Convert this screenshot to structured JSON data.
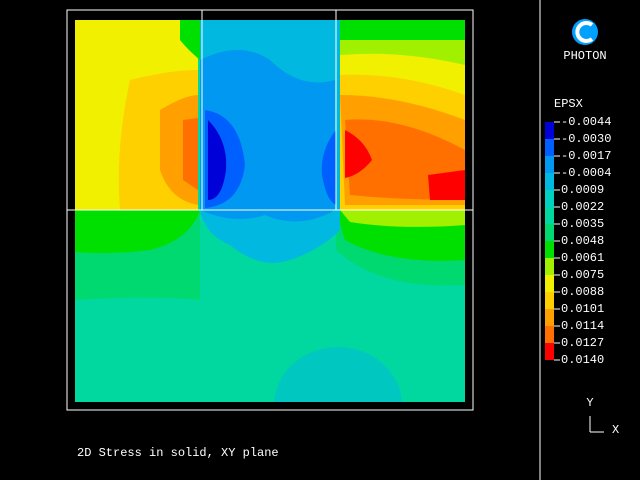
{
  "logo": {
    "label": "PHOTON"
  },
  "legend": {
    "title": "EPSX",
    "labels": [
      "-0.0044",
      "-0.0030",
      "-0.0017",
      "-0.0004",
      "0.0009",
      "0.0022",
      "0.0035",
      "0.0048",
      "0.0061",
      "0.0075",
      "0.0088",
      "0.0101",
      "0.0114",
      "0.0127",
      "0.0140"
    ],
    "colors": [
      "#0000d8",
      "#0060ff",
      "#0098f0",
      "#00b8e0",
      "#00d0c0",
      "#00d8a0",
      "#00d870",
      "#00e000",
      "#a0f000",
      "#f0f000",
      "#ffd000",
      "#ffa000",
      "#ff7000",
      "#ff0000"
    ]
  },
  "caption": "2D Stress in solid, XY plane",
  "axes": {
    "y": "Y",
    "x": "X"
  }
}
